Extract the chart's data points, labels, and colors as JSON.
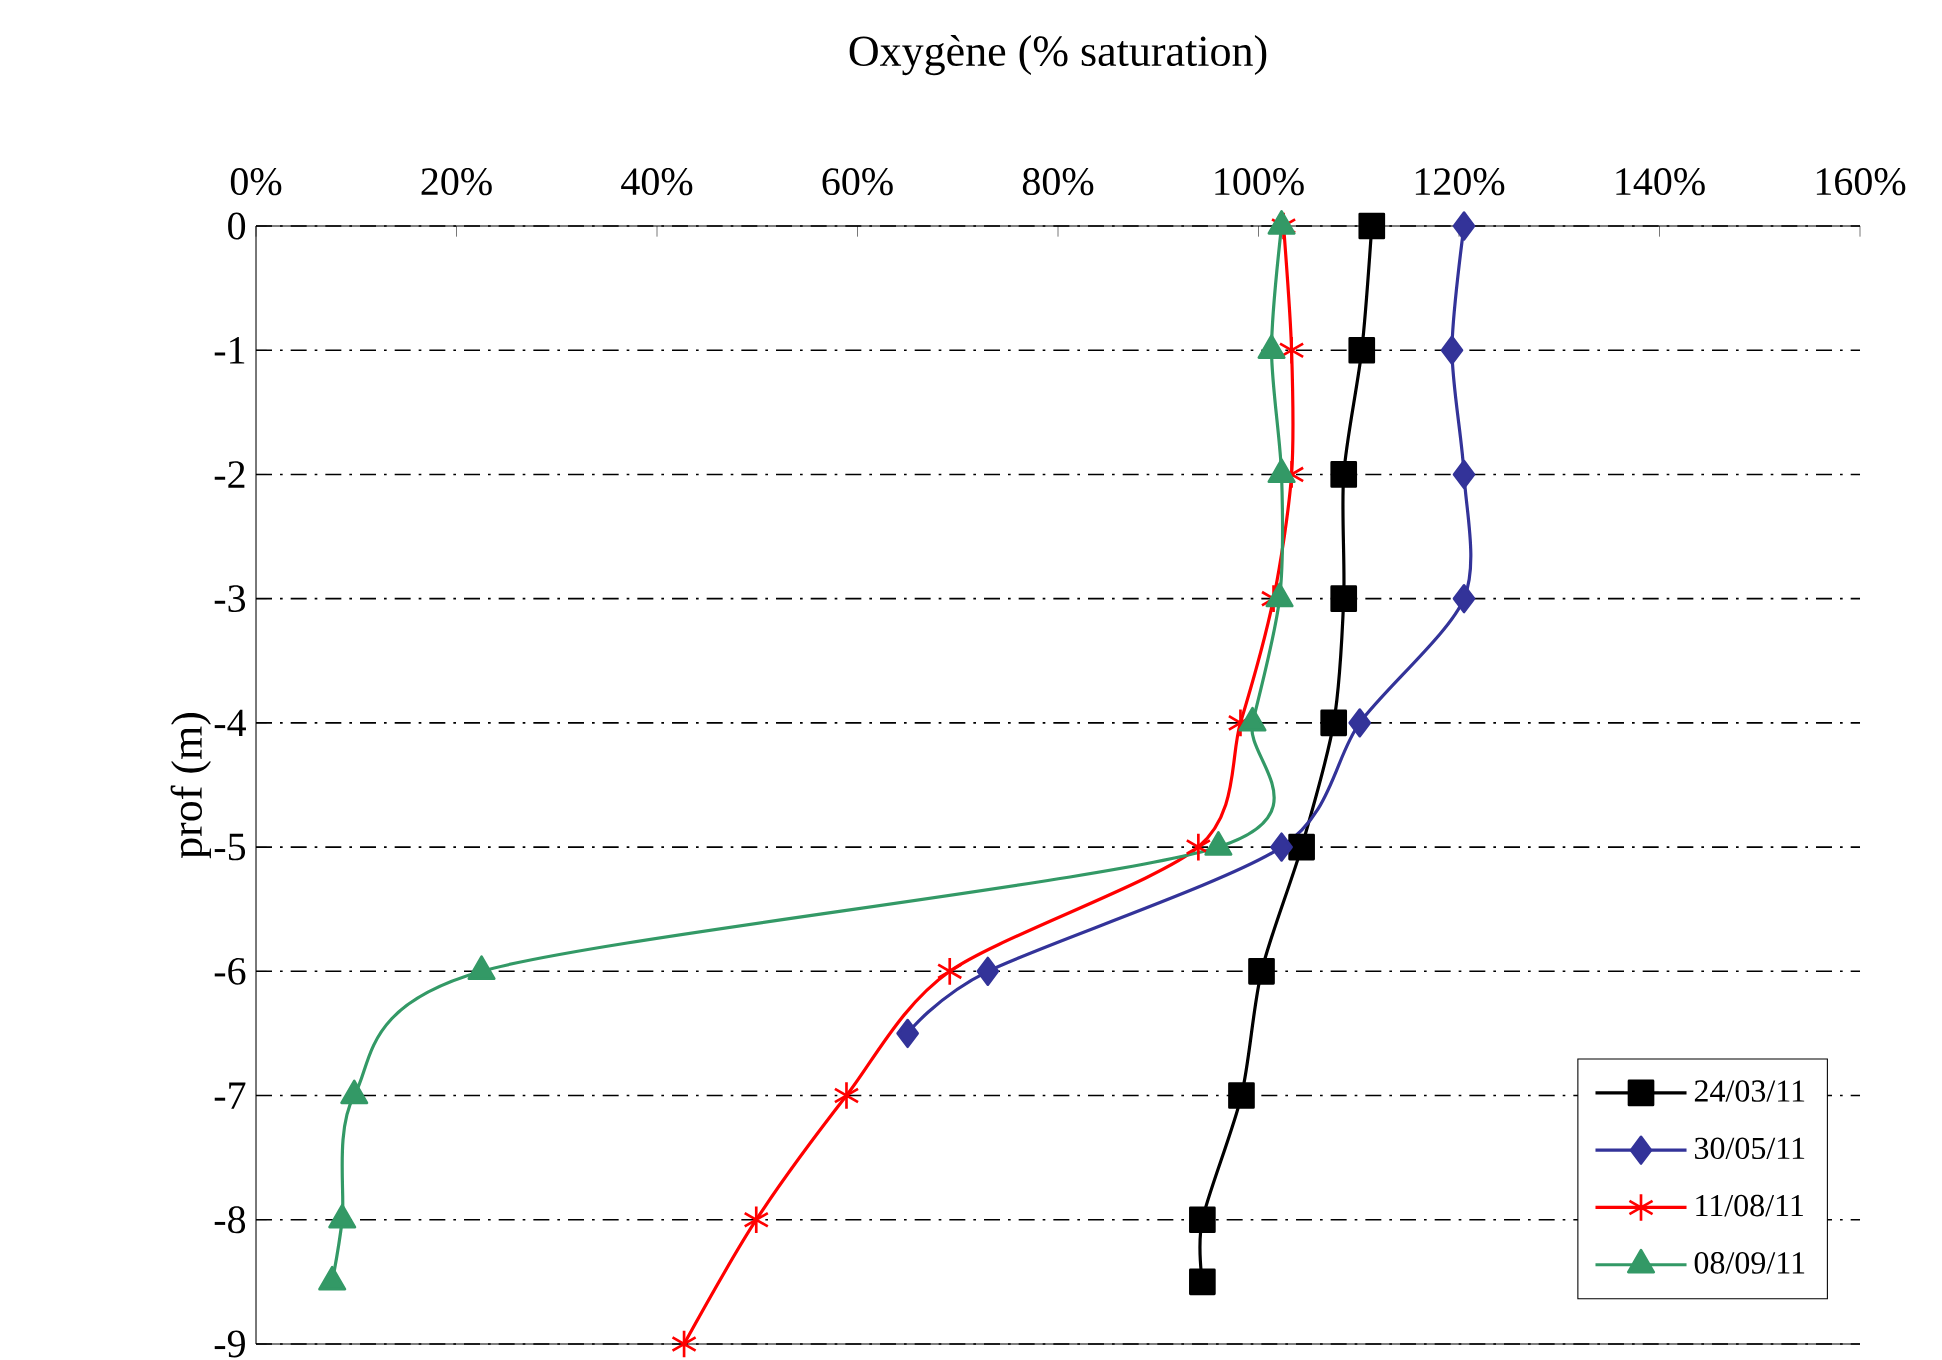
{
  "chart_data": {
    "type": "line",
    "xlabel": "Oxygène (% saturation)",
    "ylabel": "prof (m)",
    "xlim": [
      0,
      160
    ],
    "xticks": [
      {
        "value": 0,
        "label": "0%"
      },
      {
        "value": 20,
        "label": "20%"
      },
      {
        "value": 40,
        "label": "40%"
      },
      {
        "value": 60,
        "label": "60%"
      },
      {
        "value": 80,
        "label": "80%"
      },
      {
        "value": 100,
        "label": "100%"
      },
      {
        "value": 120,
        "label": "120%"
      },
      {
        "value": 140,
        "label": "140%"
      },
      {
        "value": 160,
        "label": "160%"
      }
    ],
    "ylim": [
      -9,
      0
    ],
    "yticks": [
      0,
      -1,
      -2,
      -3,
      -4,
      -5,
      -6,
      -7,
      -8,
      -9
    ],
    "grid": "y",
    "legend": "bottom right",
    "line_style": "solid",
    "series": [
      {
        "name": "24/03/11",
        "color": "#000000",
        "marker": "square",
        "x": [
          111.3,
          110.3,
          108.5,
          108.5,
          107.5,
          104.3,
          100.3,
          98.3,
          94.4,
          94.4
        ],
        "values": [
          0,
          -1,
          -2,
          -3,
          -4,
          -5,
          -6,
          -7,
          -8,
          -8.5
        ]
      },
      {
        "name": "30/05/11",
        "color": "#333399",
        "marker": "diamond",
        "x": [
          120.5,
          119.3,
          120.5,
          120.5,
          110.1,
          102.3,
          73,
          65
        ],
        "values": [
          0,
          -1,
          -2,
          -3,
          -4,
          -5,
          -6,
          -6.5
        ]
      },
      {
        "name": "11/08/11",
        "color": "#ff0000",
        "marker": "cross",
        "x": [
          102.5,
          103.3,
          103.3,
          101.5,
          98.2,
          94,
          69.2,
          58.9,
          49.9,
          42.7
        ],
        "values": [
          0,
          -1,
          -2,
          -3,
          -4,
          -5,
          -6,
          -7,
          -8,
          -9
        ]
      },
      {
        "name": "08/09/11",
        "color": "#339966",
        "marker": "triangle",
        "x": [
          102.3,
          101.3,
          102.3,
          102.1,
          99.4,
          96,
          22.5,
          9.8,
          8.6,
          7.6
        ],
        "values": [
          0,
          -1,
          -2,
          -3,
          -4,
          -5,
          -6,
          -7,
          -8,
          -8.5
        ]
      }
    ]
  }
}
